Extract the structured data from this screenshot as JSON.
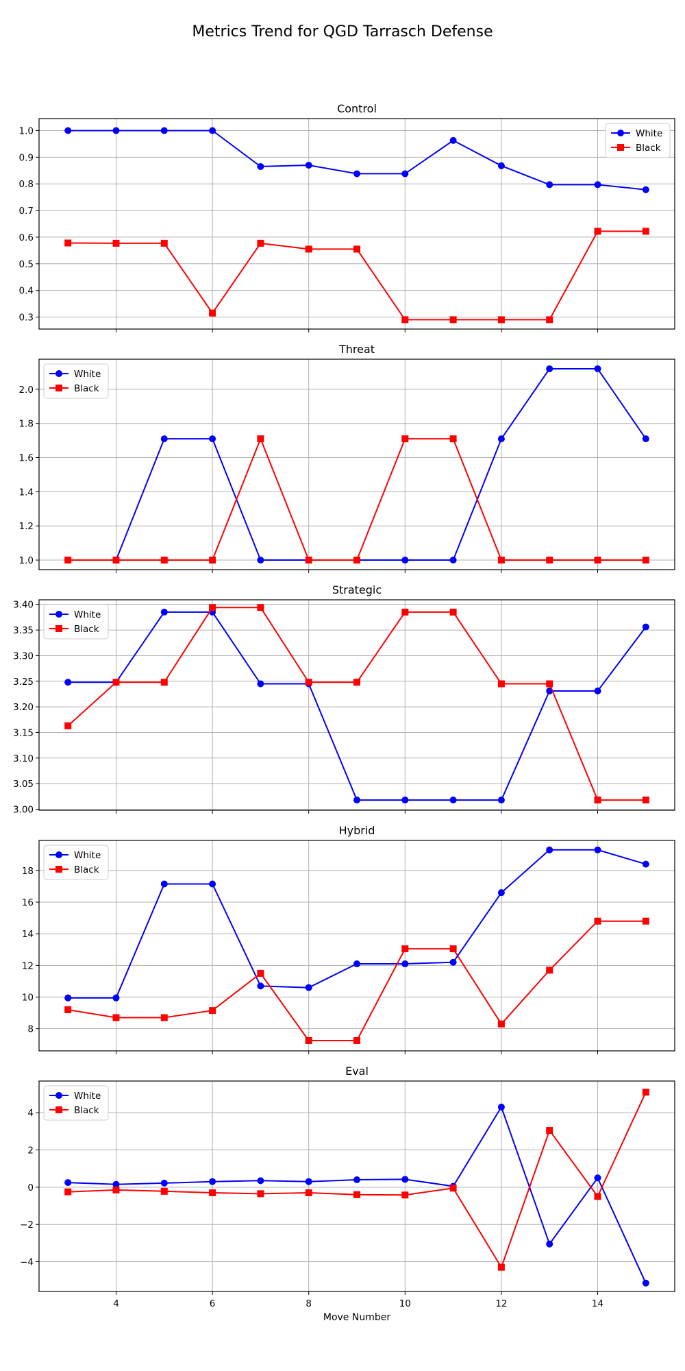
{
  "figure": {
    "title": "Metrics Trend for QGD Tarrasch Defense",
    "xlabel": "Move Number"
  },
  "colors": {
    "white_series": "#0000ff",
    "black_series": "#ff0000",
    "grid": "#b0b0b0",
    "axes": "#000000"
  },
  "chart_data": [
    {
      "type": "line",
      "title": "Control",
      "xlabel": "",
      "ylabel": "",
      "x": [
        3,
        4,
        5,
        6,
        7,
        8,
        9,
        10,
        11,
        12,
        13,
        14,
        15
      ],
      "xlim": [
        2.4,
        15.6
      ],
      "ylim": [
        0.255,
        1.045
      ],
      "yticks": [
        0.3,
        0.4,
        0.5,
        0.6,
        0.7,
        0.8,
        0.9,
        1.0
      ],
      "ytick_labels": [
        "0.3",
        "0.4",
        "0.5",
        "0.6",
        "0.7",
        "0.8",
        "0.9",
        "1.0"
      ],
      "xticks": [
        4,
        6,
        8,
        10,
        12,
        14
      ],
      "xtick_labels": [],
      "grid": true,
      "legend": "top-right",
      "series": [
        {
          "name": "White",
          "marker": "circle",
          "values": [
            1.0,
            1.0,
            1.0,
            1.0,
            0.865,
            0.87,
            0.838,
            0.838,
            0.963,
            0.868,
            0.797,
            0.797,
            0.778
          ]
        },
        {
          "name": "Black",
          "marker": "square",
          "values": [
            0.578,
            0.577,
            0.577,
            0.315,
            0.577,
            0.555,
            0.555,
            0.29,
            0.29,
            0.29,
            0.29,
            0.622,
            0.622
          ]
        }
      ]
    },
    {
      "type": "line",
      "title": "Threat",
      "xlabel": "",
      "ylabel": "",
      "x": [
        3,
        4,
        5,
        6,
        7,
        8,
        9,
        10,
        11,
        12,
        13,
        14,
        15
      ],
      "xlim": [
        2.4,
        15.6
      ],
      "ylim": [
        0.944,
        2.176
      ],
      "yticks": [
        1.0,
        1.2,
        1.4,
        1.6,
        1.8,
        2.0
      ],
      "ytick_labels": [
        "1.0",
        "1.2",
        "1.4",
        "1.6",
        "1.8",
        "2.0"
      ],
      "xticks": [
        4,
        6,
        8,
        10,
        12,
        14
      ],
      "xtick_labels": [],
      "grid": true,
      "legend": "top-left",
      "series": [
        {
          "name": "White",
          "marker": "circle",
          "values": [
            1.0,
            1.0,
            1.71,
            1.71,
            1.0,
            1.0,
            1.0,
            1.0,
            1.0,
            1.71,
            2.12,
            2.12,
            1.71
          ]
        },
        {
          "name": "Black",
          "marker": "square",
          "values": [
            1.0,
            1.0,
            1.0,
            1.0,
            1.71,
            1.0,
            1.0,
            1.71,
            1.71,
            1.0,
            1.0,
            1.0,
            1.0
          ]
        }
      ]
    },
    {
      "type": "line",
      "title": "Strategic",
      "xlabel": "",
      "ylabel": "",
      "x": [
        3,
        4,
        5,
        6,
        7,
        8,
        9,
        10,
        11,
        12,
        13,
        14,
        15
      ],
      "xlim": [
        2.4,
        15.6
      ],
      "ylim": [
        2.998,
        3.409
      ],
      "yticks": [
        3.0,
        3.05,
        3.1,
        3.15,
        3.2,
        3.25,
        3.3,
        3.35,
        3.4
      ],
      "ytick_labels": [
        "3.00",
        "3.05",
        "3.10",
        "3.15",
        "3.20",
        "3.25",
        "3.30",
        "3.35",
        "3.40"
      ],
      "xticks": [
        4,
        6,
        8,
        10,
        12,
        14
      ],
      "xtick_labels": [],
      "grid": true,
      "legend": "top-left",
      "series": [
        {
          "name": "White",
          "marker": "circle",
          "values": [
            3.248,
            3.248,
            3.385,
            3.385,
            3.245,
            3.245,
            3.018,
            3.018,
            3.018,
            3.018,
            3.231,
            3.231,
            3.356
          ]
        },
        {
          "name": "Black",
          "marker": "square",
          "values": [
            3.163,
            3.248,
            3.248,
            3.394,
            3.394,
            3.248,
            3.248,
            3.385,
            3.385,
            3.245,
            3.245,
            3.018,
            3.018
          ]
        }
      ]
    },
    {
      "type": "line",
      "title": "Hybrid",
      "xlabel": "",
      "ylabel": "",
      "x": [
        3,
        4,
        5,
        6,
        7,
        8,
        9,
        10,
        11,
        12,
        13,
        14,
        15
      ],
      "xlim": [
        2.4,
        15.6
      ],
      "ylim": [
        6.6,
        19.9
      ],
      "yticks": [
        8,
        10,
        12,
        14,
        16,
        18
      ],
      "ytick_labels": [
        "8",
        "10",
        "12",
        "14",
        "16",
        "18"
      ],
      "xticks": [
        4,
        6,
        8,
        10,
        12,
        14
      ],
      "xtick_labels": [],
      "grid": true,
      "legend": "top-left",
      "series": [
        {
          "name": "White",
          "marker": "circle",
          "values": [
            9.95,
            9.95,
            17.15,
            17.15,
            10.7,
            10.6,
            12.1,
            12.1,
            12.2,
            16.6,
            19.3,
            19.3,
            18.4
          ]
        },
        {
          "name": "Black",
          "marker": "square",
          "values": [
            9.2,
            8.7,
            8.7,
            9.15,
            11.5,
            7.25,
            7.25,
            13.05,
            13.05,
            8.3,
            11.7,
            14.8,
            14.8
          ]
        }
      ]
    },
    {
      "type": "line",
      "title": "Eval",
      "xlabel": "Move Number",
      "ylabel": "",
      "x": [
        3,
        4,
        5,
        6,
        7,
        8,
        9,
        10,
        11,
        12,
        13,
        14,
        15
      ],
      "xlim": [
        2.4,
        15.6
      ],
      "ylim": [
        -5.6,
        5.7
      ],
      "yticks": [
        -4,
        -2,
        0,
        2,
        4
      ],
      "ytick_labels": [
        "−4",
        "−2",
        "0",
        "2",
        "4"
      ],
      "xticks": [
        4,
        6,
        8,
        10,
        12,
        14
      ],
      "xtick_labels": [
        "4",
        "6",
        "8",
        "10",
        "12",
        "14"
      ],
      "grid": true,
      "legend": "top-left",
      "series": [
        {
          "name": "White",
          "marker": "circle",
          "values": [
            0.25,
            0.15,
            0.22,
            0.3,
            0.35,
            0.3,
            0.4,
            0.42,
            0.05,
            4.3,
            -3.05,
            0.5,
            -5.15
          ]
        },
        {
          "name": "Black",
          "marker": "square",
          "values": [
            -0.25,
            -0.15,
            -0.22,
            -0.3,
            -0.35,
            -0.3,
            -0.4,
            -0.42,
            -0.05,
            -4.3,
            3.05,
            -0.5,
            5.1
          ]
        }
      ]
    }
  ]
}
